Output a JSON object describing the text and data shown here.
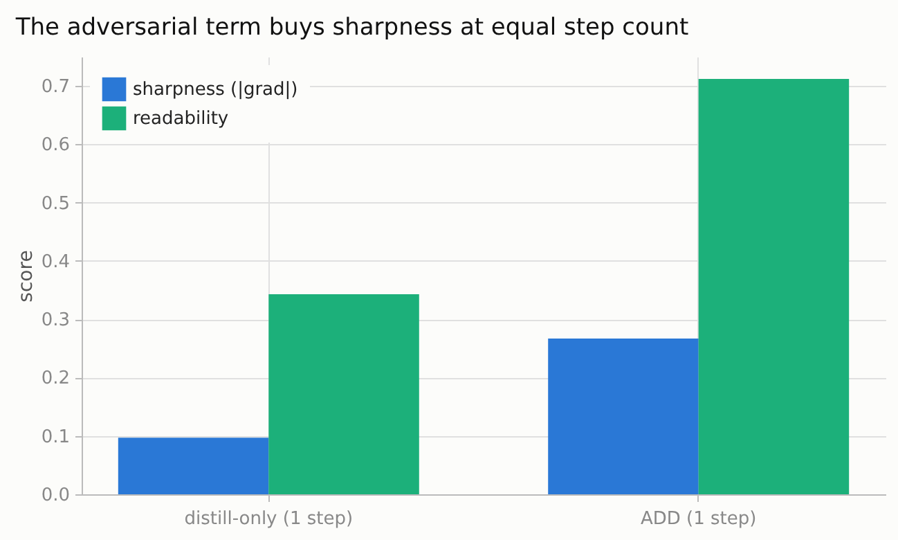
{
  "chart_data": {
    "type": "bar",
    "title": "The adversarial term buys sharpness at equal step count",
    "ylabel": "score",
    "categories": [
      "distill-only (1 step)",
      "ADD (1 step)"
    ],
    "series": [
      {
        "name": "sharpness (|grad|)",
        "color": "#2a78d6",
        "values": [
          0.097,
          0.267
        ]
      },
      {
        "name": "readability",
        "color": "#1cb07a",
        "values": [
          0.343,
          0.712
        ]
      }
    ],
    "ylim": [
      0,
      0.75
    ],
    "yticks": [
      {
        "value": 0,
        "label": "0.0"
      },
      0.1,
      0.2,
      0.3,
      0.4,
      0.5,
      0.6,
      0.7
    ],
    "grid": true,
    "legend": "top left"
  }
}
